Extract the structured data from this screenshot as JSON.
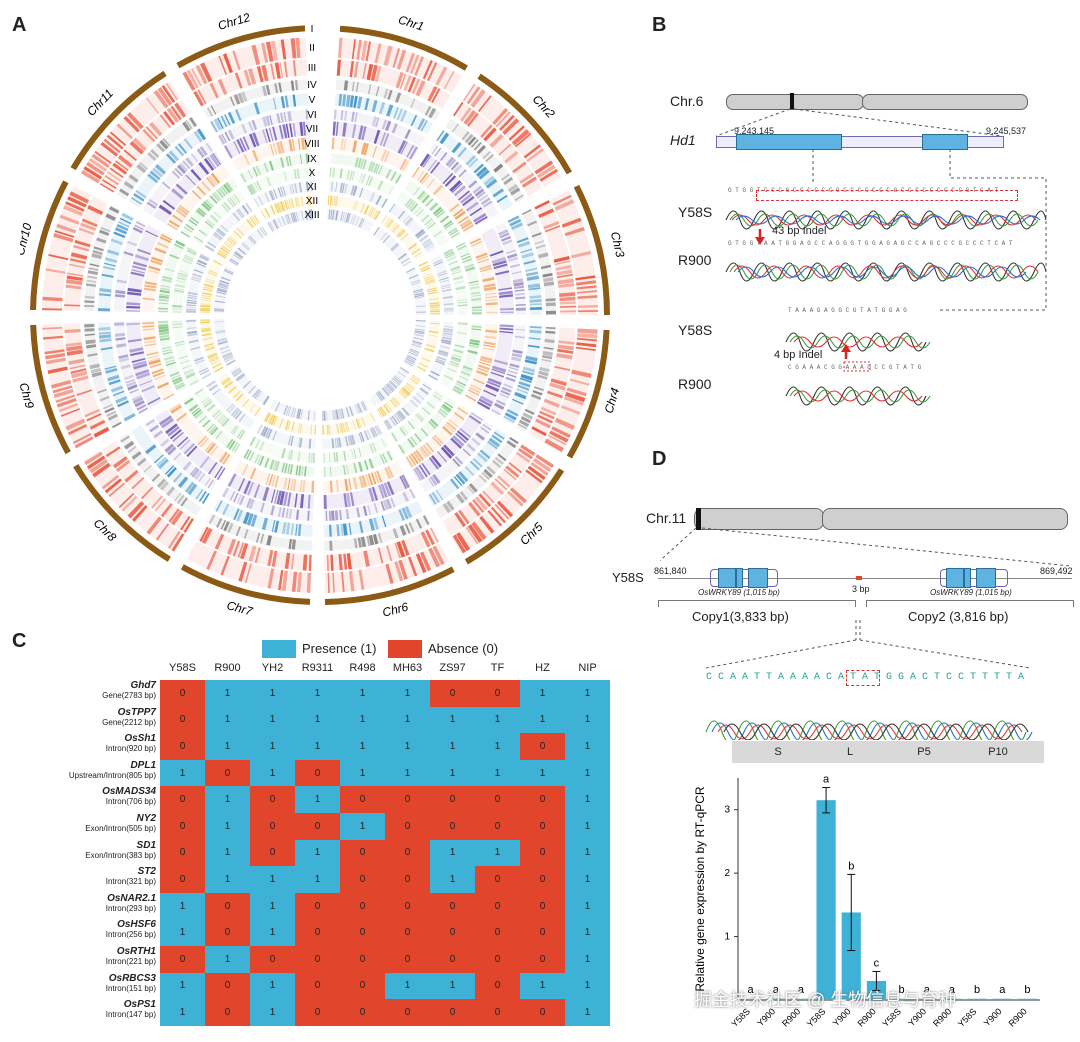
{
  "panels": {
    "A": "A",
    "B": "B",
    "C": "C",
    "D": "D"
  },
  "circos": {
    "chromosomes": [
      "Chr1",
      "Chr2",
      "Chr3",
      "Chr4",
      "Chr5",
      "Chr6",
      "Chr7",
      "Chr8",
      "Chr9",
      "Chr10",
      "Chr11",
      "Chr12"
    ],
    "tracks": [
      "I",
      "II",
      "III",
      "IV",
      "V",
      "VI",
      "VII",
      "VIII",
      "IX",
      "X",
      "XI",
      "XII",
      "XIII"
    ],
    "track_colors": [
      "#8b5a14",
      "#e8553c",
      "#e8553c",
      "#7f7f7f",
      "#3a8fc8",
      "#9b8fc7",
      "#6a4fb0",
      "#f0a05a",
      "#7cc47c",
      "#a7d8a7",
      "#9aa6c6",
      "#f2c94c",
      "#9aa6c6"
    ]
  },
  "panelB": {
    "chr_label": "Chr.6",
    "gene_label": "Hd1",
    "coord_start": "9,243,145",
    "coord_end": "9,245,537",
    "sample1": "Y58S",
    "sample2": "R900",
    "indel1": "43 bp Indel",
    "indel2": "4 bp Indel",
    "seq1": "G T G G T C C C G C C C C C C G C C C C C C C G C C C C C C C C C G T C A T",
    "seq2": "G T G G T A A T G G A G C C A G G G T G G A G A G C C A G C C C G C C C T C A T",
    "seq3": "T A A A G A G G C G T A T G G A G",
    "seq4": "C G A A A C G G A A A G C C G T A T G"
  },
  "panelC": {
    "legend_presence": "Presence (1)",
    "legend_absence": "Absence (0)",
    "colors": {
      "presence": "#3db1d6",
      "absence": "#e1462c"
    },
    "columns": [
      "Y58S",
      "R900",
      "YH2",
      "R9311",
      "R498",
      "MH63",
      "ZS97",
      "TF",
      "HZ",
      "NIP"
    ],
    "rows": [
      {
        "gene": "Ghd7",
        "region": "Gene(2783 bp)",
        "values": [
          0,
          1,
          1,
          1,
          1,
          1,
          0,
          0,
          1,
          1
        ]
      },
      {
        "gene": "OsTPP7",
        "region": "Gene(2212 bp)",
        "values": [
          0,
          1,
          1,
          1,
          1,
          1,
          1,
          1,
          1,
          1
        ]
      },
      {
        "gene": "OsSh1",
        "region": "Intron(920 bp)",
        "values": [
          0,
          1,
          1,
          1,
          1,
          1,
          1,
          1,
          0,
          1
        ]
      },
      {
        "gene": "DPL1",
        "region": "Upstream/Intron(805 bp)",
        "values": [
          1,
          0,
          1,
          0,
          1,
          1,
          1,
          1,
          1,
          1
        ]
      },
      {
        "gene": "OsMADS34",
        "region": "Intron(706 bp)",
        "values": [
          0,
          1,
          0,
          1,
          0,
          0,
          0,
          0,
          0,
          1
        ]
      },
      {
        "gene": "NY2",
        "region": "Exon/Intron(505 bp)",
        "values": [
          0,
          1,
          0,
          0,
          1,
          0,
          0,
          0,
          0,
          1
        ]
      },
      {
        "gene": "SD1",
        "region": "Exon/Intron(383 bp)",
        "values": [
          0,
          1,
          0,
          1,
          0,
          0,
          1,
          1,
          0,
          1
        ]
      },
      {
        "gene": "ST2",
        "region": "Intron(321 bp)",
        "values": [
          0,
          1,
          1,
          1,
          0,
          0,
          1,
          0,
          0,
          1
        ]
      },
      {
        "gene": "OsNAR2.1",
        "region": "Intron(293 bp)",
        "values": [
          1,
          0,
          1,
          0,
          0,
          0,
          0,
          0,
          0,
          1
        ]
      },
      {
        "gene": "OsHSF6",
        "region": "Intron(256 bp)",
        "values": [
          1,
          0,
          1,
          0,
          0,
          0,
          0,
          0,
          0,
          1
        ]
      },
      {
        "gene": "OsRTH1",
        "region": "Intron(221 bp)",
        "values": [
          0,
          1,
          0,
          0,
          0,
          0,
          0,
          0,
          0,
          1
        ]
      },
      {
        "gene": "OsRBCS3",
        "region": "Intron(151 bp)",
        "values": [
          1,
          0,
          1,
          0,
          0,
          1,
          1,
          0,
          1,
          1
        ]
      },
      {
        "gene": "OsPS1",
        "region": "Intron(147 bp)",
        "values": [
          1,
          0,
          1,
          0,
          0,
          0,
          0,
          0,
          0,
          1
        ]
      }
    ]
  },
  "panelD": {
    "chr_label": "Chr.11",
    "sample": "Y58S",
    "coord_start": "861,840",
    "coord_end": "869,492",
    "gene1": "OsWRKY89 (1,015 bp)",
    "gene2": "OsWRKY89 (1,015 bp)",
    "gap": "3 bp",
    "copy1": "Copy1(3,833 bp)",
    "copy2": "Copy2 (3,816 bp)",
    "seq": "C C A A T T A A A A C A T A T G G A C T C C T T T T A",
    "stages": [
      "S",
      "L",
      "P5",
      "P10"
    ]
  },
  "chart_data": {
    "type": "bar",
    "ylabel": "Relative gene expression by RT-qPCR",
    "ylim": [
      0,
      3.5
    ],
    "yticks": [
      "1",
      "2",
      "3"
    ],
    "categories": [
      "Y58S",
      "Y900",
      "R900",
      "Y58S",
      "Y900",
      "R900",
      "Y58S",
      "Y900",
      "R900",
      "Y58S",
      "Y900",
      "R900"
    ],
    "groups": [
      "S",
      "L",
      "P5",
      "P10"
    ],
    "values": [
      0.02,
      0.02,
      0.02,
      3.15,
      1.38,
      0.3,
      0.02,
      0.02,
      0.02,
      0.02,
      0.02,
      0.02
    ],
    "errors": [
      0.01,
      0.01,
      0.01,
      0.2,
      0.6,
      0.15,
      0.01,
      0.01,
      0.01,
      0.01,
      0.01,
      0.01
    ],
    "letters": [
      "a",
      "a",
      "a",
      "a",
      "b",
      "c",
      "b",
      "a",
      "a",
      "b",
      "a",
      "b"
    ],
    "color": "#3db1d6"
  },
  "watermark": "掘金技术社区 @ 生物信息与育种"
}
